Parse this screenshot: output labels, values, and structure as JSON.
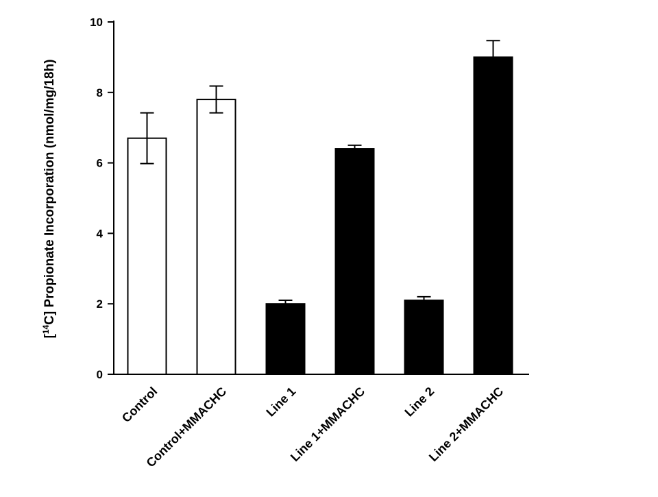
{
  "chart_data": {
    "type": "bar",
    "categories": [
      "Control",
      "Control+MMACHC",
      "Line 1",
      "Line 1+MMACHC",
      "Line 2",
      "Line 2+MMACHC"
    ],
    "values": [
      6.7,
      7.8,
      2.0,
      6.4,
      2.1,
      9.0
    ],
    "errors": [
      0.72,
      0.38,
      0.1,
      0.1,
      0.1,
      0.47
    ],
    "bar_fills": [
      "#ffffff",
      "#ffffff",
      "#000000",
      "#000000",
      "#000000",
      "#000000"
    ],
    "ylim": [
      0,
      10
    ],
    "yticks": [
      0,
      2,
      4,
      6,
      8,
      10
    ],
    "ylabel_prefix": "[",
    "ylabel_sup": "14",
    "ylabel_main": "C] Propionate Incorporation (nmol/mg/18h)",
    "xlabel": "",
    "title": "",
    "grid": false,
    "legend": "none"
  }
}
